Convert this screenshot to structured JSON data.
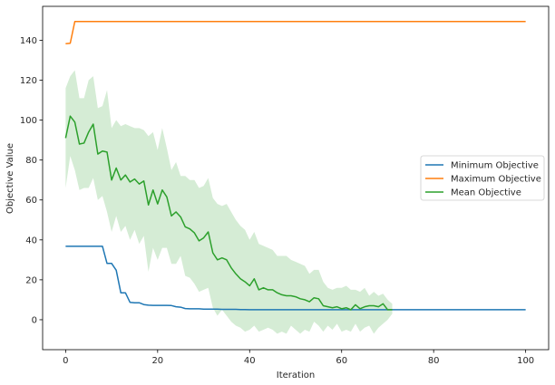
{
  "chart_data": {
    "type": "line",
    "title": "",
    "xlabel": "Iteration",
    "ylabel": "Objective Value",
    "xlim": [
      -5,
      105
    ],
    "ylim": [
      -15,
      157
    ],
    "xticks": [
      0,
      20,
      40,
      60,
      80,
      100
    ],
    "yticks": [
      0,
      20,
      40,
      60,
      80,
      100,
      120,
      140
    ],
    "grid": false,
    "legend_position": "center-right",
    "series": [
      {
        "name": "Minimum Objective",
        "color": "#1f77b4",
        "x": [
          0,
          1,
          2,
          3,
          4,
          5,
          6,
          7,
          8,
          9,
          10,
          11,
          12,
          13,
          14,
          15,
          16,
          17,
          18,
          19,
          20,
          21,
          22,
          23,
          24,
          25,
          26,
          27,
          28,
          29,
          30,
          31,
          32,
          33,
          34,
          35,
          36,
          37,
          38,
          39,
          40,
          45,
          50,
          55,
          60,
          65,
          70,
          75,
          80,
          85,
          90,
          95,
          100
        ],
        "y": [
          36.8,
          36.8,
          36.8,
          36.8,
          36.8,
          36.8,
          36.8,
          36.8,
          36.8,
          28.2,
          28.2,
          24.8,
          13.5,
          13.5,
          8.7,
          8.5,
          8.5,
          7.6,
          7.3,
          7.2,
          7.2,
          7.2,
          7.2,
          7.1,
          6.5,
          6.3,
          5.6,
          5.5,
          5.5,
          5.5,
          5.3,
          5.3,
          5.3,
          5.3,
          5.2,
          5.2,
          5.2,
          5.2,
          5.1,
          5.1,
          5.0,
          5.0,
          5.0,
          5.0,
          5.0,
          5.0,
          5.0,
          5.0,
          5.0,
          5.0,
          5.0,
          5.0,
          5.0
        ]
      },
      {
        "name": "Maximum Objective",
        "color": "#ff7f0e",
        "x": [
          0,
          1,
          2,
          10,
          20,
          40,
          60,
          80,
          100
        ],
        "y": [
          138.3,
          138.5,
          149.4,
          149.4,
          149.4,
          149.4,
          149.4,
          149.4,
          149.4
        ]
      },
      {
        "name": "Mean Objective",
        "color": "#2ca02c",
        "x": [
          0,
          1,
          2,
          3,
          4,
          5,
          6,
          7,
          8,
          9,
          10,
          11,
          12,
          13,
          14,
          15,
          16,
          17,
          18,
          19,
          20,
          21,
          22,
          23,
          24,
          25,
          26,
          27,
          28,
          29,
          30,
          31,
          32,
          33,
          34,
          35,
          36,
          37,
          38,
          39,
          40,
          41,
          42,
          43,
          44,
          45,
          46,
          47,
          48,
          49,
          50,
          51,
          52,
          53,
          54,
          55,
          56,
          57,
          58,
          59,
          60,
          61,
          62,
          63,
          64,
          65,
          66,
          67,
          68,
          69,
          70,
          71
        ],
        "y": [
          91,
          102,
          99,
          88,
          88.5,
          94,
          98,
          83,
          84.5,
          84,
          70,
          76,
          70,
          72.5,
          69,
          70.5,
          68,
          69.5,
          57.5,
          65,
          58,
          65,
          61.5,
          52,
          54,
          51.5,
          46.5,
          45.5,
          43.5,
          39.5,
          41,
          44,
          33.5,
          30,
          31,
          30,
          26,
          23,
          20.5,
          19,
          17,
          20.5,
          15,
          16,
          15,
          15,
          13.5,
          12.5,
          12,
          12,
          11.5,
          10.5,
          10,
          9,
          11,
          10.5,
          7,
          6.5,
          6,
          6.5,
          5.5,
          6,
          5,
          7.5,
          5.5,
          6.5,
          7,
          7,
          6.5,
          8,
          5,
          5
        ]
      }
    ],
    "band": {
      "series": "Mean Objective",
      "color": "#2ca02c",
      "opacity": 0.2,
      "x": [
        0,
        1,
        2,
        3,
        4,
        5,
        6,
        7,
        8,
        9,
        10,
        11,
        12,
        13,
        14,
        15,
        16,
        17,
        18,
        19,
        20,
        21,
        22,
        23,
        24,
        25,
        26,
        27,
        28,
        29,
        30,
        31,
        32,
        33,
        34,
        35,
        36,
        37,
        38,
        39,
        40,
        41,
        42,
        43,
        44,
        45,
        46,
        47,
        48,
        49,
        50,
        51,
        52,
        53,
        54,
        55,
        56,
        57,
        58,
        59,
        60,
        61,
        62,
        63,
        64,
        65,
        66,
        67,
        68,
        69,
        70,
        71
      ],
      "upper": [
        116,
        122,
        125,
        111,
        111,
        120,
        122,
        106,
        107,
        115,
        96,
        100,
        97,
        98,
        97,
        96,
        96,
        95,
        92,
        94,
        85,
        96,
        86,
        75,
        79,
        72,
        72,
        70,
        70,
        66,
        67,
        71,
        61,
        58,
        57,
        58,
        54,
        50,
        47,
        45,
        40,
        44,
        38,
        37,
        36,
        35,
        32,
        32,
        32,
        30,
        29,
        28,
        27,
        23,
        25,
        25,
        19,
        16,
        15,
        16,
        16,
        17,
        15,
        15,
        14,
        16,
        12,
        14,
        12,
        13,
        10,
        8
      ],
      "lower": [
        66,
        82,
        75,
        65,
        66,
        66,
        71,
        60,
        62,
        54,
        44,
        52,
        44,
        47,
        40,
        45,
        38,
        42,
        24,
        36,
        30,
        36,
        36,
        28,
        28,
        32,
        22,
        21,
        18,
        14,
        15,
        16,
        6,
        2,
        5,
        2,
        -1,
        -3,
        -4,
        -6,
        -5,
        -3,
        -6,
        -5,
        -4,
        -5,
        -7,
        -6,
        -7,
        -3,
        -5,
        -7,
        -5,
        -6,
        -1,
        -3,
        -6,
        -3,
        -5,
        -2,
        -6,
        -5,
        -6,
        -2,
        -6,
        -4,
        -3,
        -7,
        -4,
        -2,
        0,
        3
      ]
    }
  }
}
